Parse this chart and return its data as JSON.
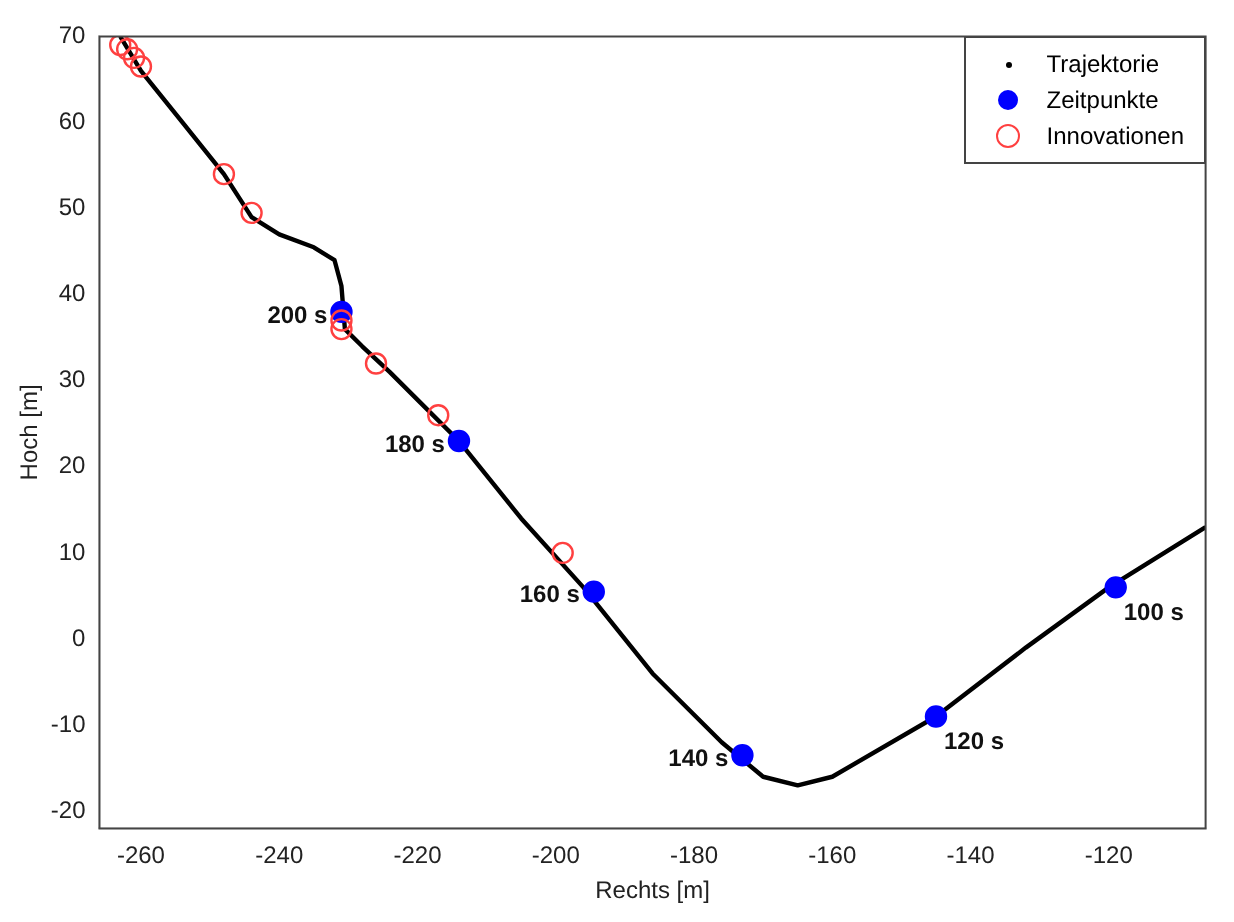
{
  "chart_data": {
    "type": "line",
    "xlabel": "Rechts [m]",
    "ylabel": "Hoch [m]",
    "xlim": [
      -266,
      -106
    ],
    "ylim": [
      -22,
      70
    ],
    "xticks": [
      -260,
      -240,
      -220,
      -200,
      -180,
      -160,
      -140,
      -120
    ],
    "yticks": [
      -20,
      -10,
      0,
      10,
      20,
      30,
      40,
      50,
      60,
      70
    ],
    "grid": false,
    "legend": "top right",
    "series": [
      {
        "name": "Trajektorie",
        "color": "#000000",
        "marker": "none",
        "line_style": "solid",
        "x": [
          -263,
          -260,
          -254,
          -248,
          -244,
          -240,
          -235,
          -232,
          -231,
          -230.5,
          -228,
          -224,
          -219,
          -214,
          -205,
          -196,
          -186,
          -176,
          -170,
          -165,
          -160,
          -145,
          -132,
          -120,
          -106
        ],
        "values": [
          70,
          66,
          60,
          54,
          49,
          47,
          45.5,
          44,
          41,
          36,
          34,
          31,
          27,
          23,
          14,
          6,
          -4,
          -12,
          -16,
          -17,
          -16,
          -9,
          -1,
          6,
          13
        ]
      },
      {
        "name": "Zeitpunkte",
        "type": "scatter",
        "color": "#0000ff",
        "marker": "circle",
        "x": [
          -119,
          -145,
          -173,
          -194.5,
          -214,
          -231
        ],
        "values": [
          6,
          -9,
          -13.5,
          5.5,
          23,
          38
        ]
      },
      {
        "name": "Innovationen",
        "type": "scatter",
        "color": "#ff4040",
        "marker": "circle",
        "x": [
          -263,
          -262,
          -261,
          -260,
          -248,
          -244,
          -231,
          -231,
          -226,
          -217,
          -199
        ],
        "values": [
          69,
          68.5,
          67.5,
          66.5,
          54,
          49.5,
          37,
          36,
          32,
          26,
          10
        ]
      }
    ],
    "annotations": [
      {
        "text": "100 s",
        "x": -119,
        "y": 6
      },
      {
        "text": "120 s",
        "x": -145,
        "y": -9
      },
      {
        "text": "140 s",
        "x": -173,
        "y": -13.5
      },
      {
        "text": "160 s",
        "x": -194.5,
        "y": 5.5
      },
      {
        "text": "180 s",
        "x": -214,
        "y": 23
      },
      {
        "text": "200 s",
        "x": -231,
        "y": 38
      }
    ]
  }
}
